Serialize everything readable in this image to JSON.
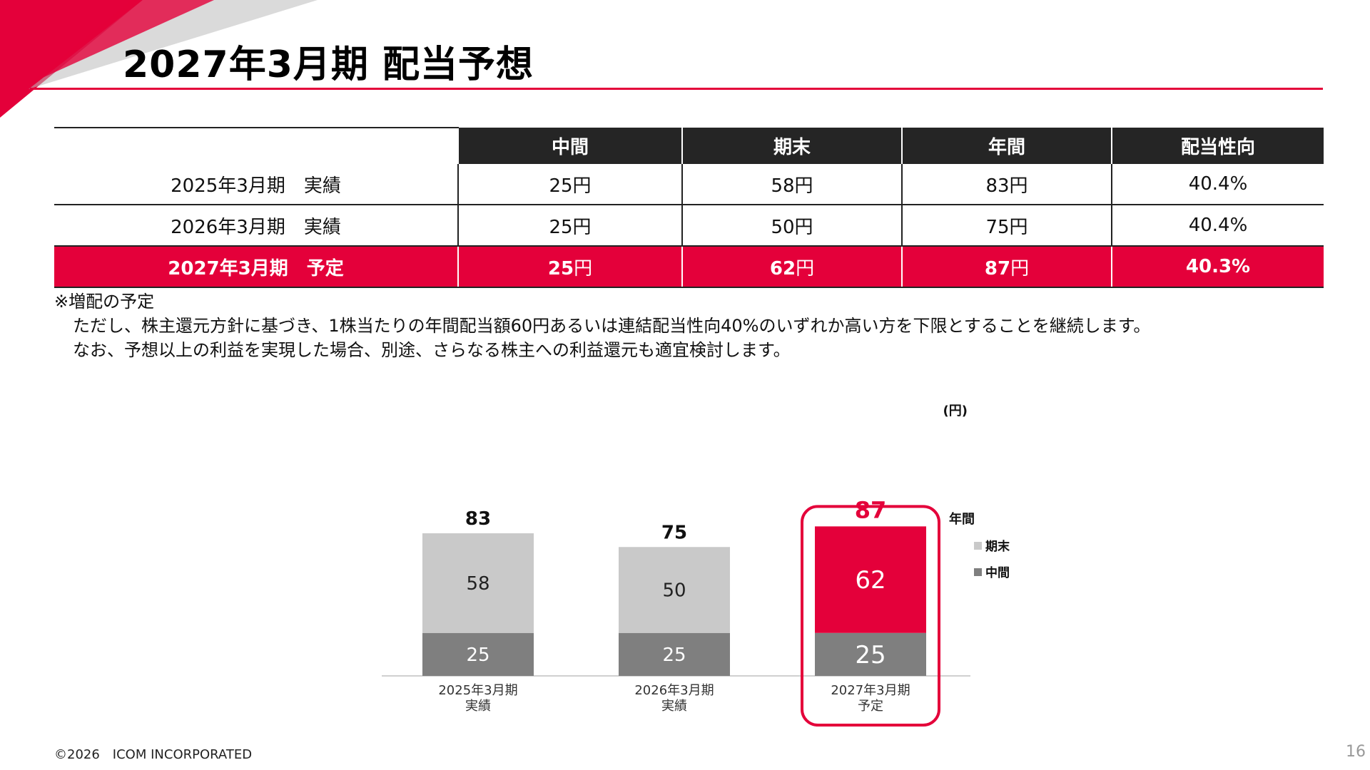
{
  "slide": {
    "title": "2027年3月期 配当予想",
    "footer": "©2026　ICOM INCORPORATED",
    "page_number": "16",
    "accent_color": "#e4003a"
  },
  "table": {
    "headers": [
      "",
      "中間",
      "期末",
      "年間",
      "配当性向"
    ],
    "rows": [
      {
        "label": "2025年3月期　実績",
        "interim": "25",
        "year_end": "58",
        "annual": "83",
        "payout": "40.4%",
        "highlight": false
      },
      {
        "label": "2026年3月期　実績",
        "interim": "25",
        "year_end": "50",
        "annual": "75",
        "payout": "40.4%",
        "highlight": false
      },
      {
        "label": "2027年3月期　予定",
        "interim": "25",
        "year_end": "62",
        "annual": "87",
        "payout": "40.3%",
        "highlight": true
      }
    ],
    "unit": "円"
  },
  "notes": {
    "line1": "※増配の予定",
    "line2": "ただし、株主還元方針に基づき、1株当たりの年間配当額60円あるいは連結配当性向40%のいずれか高い方を下限とすることを継続します。",
    "line3": "なお、予想以上の利益を実現した場合、別途、さらなる株主への利益還元も適宜検討します。"
  },
  "chart_data": {
    "type": "bar",
    "stacked": true,
    "unit_label": "(円)",
    "categories": [
      [
        "2025年3月期",
        "実績"
      ],
      [
        "2026年3月期",
        "実績"
      ],
      [
        "2027年3月期",
        "予定"
      ]
    ],
    "series": [
      {
        "name": "中間",
        "values": [
          25,
          25,
          25
        ],
        "color": "#7f7f7f"
      },
      {
        "name": "期末",
        "values": [
          58,
          50,
          62
        ],
        "color": "#c9c9c9"
      }
    ],
    "totals": [
      83,
      75,
      87
    ],
    "total_label": "年間",
    "highlight_index": 2,
    "highlight_color": "#e4003a",
    "legend_position": "right",
    "ylim": [
      0,
      100
    ],
    "grid": false
  }
}
